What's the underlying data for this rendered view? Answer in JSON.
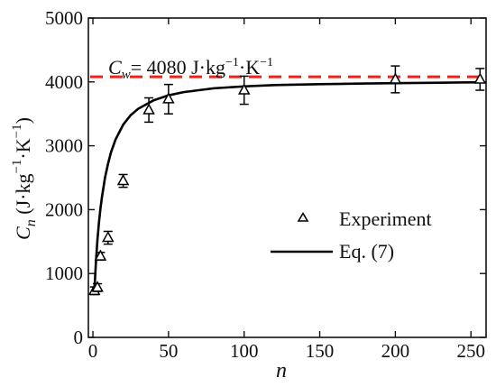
{
  "chart_data": {
    "type": "scatter",
    "xlabel": "n",
    "ylabel": "Cn (J·kg−1·K−1)",
    "ylabel_main": "C",
    "ylabel_sub": "n",
    "ylabel_units_pre": " (J·kg",
    "ylabel_units_sup1": "−1",
    "ylabel_units_mid": "·K",
    "ylabel_units_sup2": "−1",
    "ylabel_units_post": ")",
    "xlim": [
      -3,
      260
    ],
    "ylim": [
      0,
      5000
    ],
    "x_ticks": [
      0,
      50,
      100,
      150,
      200,
      250
    ],
    "y_ticks": [
      0,
      1000,
      2000,
      3000,
      4000,
      5000
    ],
    "reference_line": {
      "y": 4080,
      "color": "#e8241e",
      "style": "dashed",
      "label_main": "C",
      "label_sub": "w",
      "label_value": "= 4080 J·kg",
      "label_sup1": "−1",
      "label_mid": "·K",
      "label_sup2": "−1"
    },
    "series": [
      {
        "name": "Experiment",
        "marker": "open-triangle",
        "color": "#000000",
        "points": [
          {
            "x": 1,
            "y": 730,
            "err": 60
          },
          {
            "x": 3,
            "y": 780,
            "err": 60
          },
          {
            "x": 5,
            "y": 1270,
            "err": 60
          },
          {
            "x": 10,
            "y": 1560,
            "err": 100
          },
          {
            "x": 20,
            "y": 2450,
            "err": 100
          },
          {
            "x": 37,
            "y": 3560,
            "err": 190
          },
          {
            "x": 50,
            "y": 3730,
            "err": 230
          },
          {
            "x": 100,
            "y": 3870,
            "err": 220
          },
          {
            "x": 200,
            "y": 4040,
            "err": 210
          },
          {
            "x": 256,
            "y": 4040,
            "err": 170
          }
        ]
      },
      {
        "name": "Eq. (7)",
        "marker": "line",
        "color": "#000000",
        "curve": {
          "x": [
            1,
            2,
            3,
            4,
            5,
            6,
            8,
            10,
            12,
            15,
            20,
            25,
            30,
            40,
            50,
            60,
            80,
            100,
            120,
            150,
            180,
            200,
            230,
            258
          ],
          "y": [
            740,
            1180,
            1530,
            1800,
            2020,
            2200,
            2500,
            2720,
            2900,
            3100,
            3330,
            3480,
            3580,
            3710,
            3790,
            3840,
            3900,
            3930,
            3950,
            3965,
            3975,
            3980,
            3988,
            3995
          ]
        }
      }
    ],
    "legend": {
      "position": "center-right",
      "entries": [
        "Experiment",
        "Eq. (7)"
      ]
    }
  }
}
